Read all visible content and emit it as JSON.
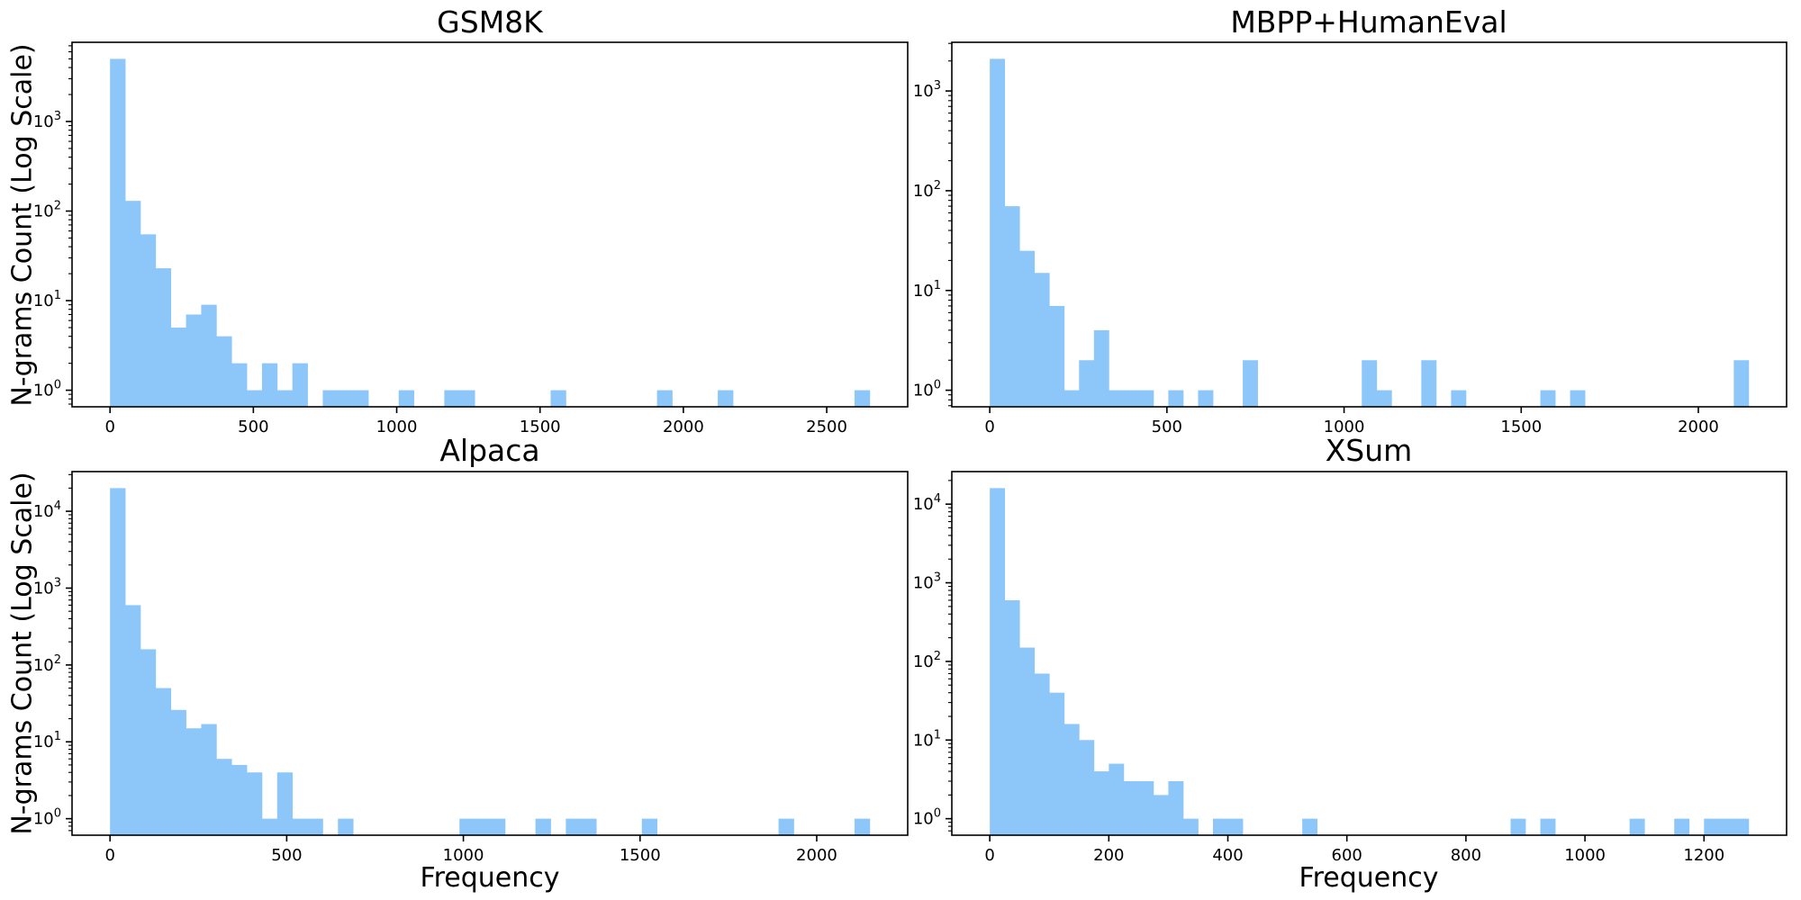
{
  "figure": {
    "background_color": "#ffffff",
    "bar_color": "#8dc7fa",
    "axis_color": "#000000",
    "shared_ylabel": "N-grams Count (Log Scale)",
    "shared_xlabel": "Frequency"
  },
  "chart_data": [
    {
      "type": "bar",
      "title": "GSM8K",
      "xlabel": "Frequency",
      "ylabel": "N-grams Count (Log Scale)",
      "yscale": "log",
      "grid": false,
      "legend": "none",
      "bin_start": 0,
      "bin_width": 53,
      "counts": [
        5000,
        130,
        55,
        23,
        5,
        7,
        9,
        4,
        2,
        1,
        2,
        1,
        2,
        0,
        1,
        1,
        1,
        0,
        0,
        1,
        0,
        0,
        1,
        1,
        0,
        0,
        0,
        0,
        0,
        1,
        0,
        0,
        0,
        0,
        0,
        0,
        1,
        0,
        0,
        0,
        1,
        0,
        0,
        0,
        0,
        0,
        0,
        0,
        0,
        1
      ],
      "xticks": [
        0,
        500,
        1000,
        1500,
        2000,
        2500
      ],
      "ytick_exponents": [
        0,
        1,
        2,
        3
      ],
      "xlim": [
        -132.5,
        2782.5
      ],
      "ylim_log10": [
        -0.185,
        3.884
      ]
    },
    {
      "type": "bar",
      "title": "MBPP+HumanEval",
      "xlabel": "Frequency",
      "ylabel": "N-grams Count (Log Scale)",
      "yscale": "log",
      "grid": false,
      "legend": "none",
      "bin_start": 0,
      "bin_width": 42,
      "counts": [
        2100,
        70,
        25,
        15,
        7,
        1,
        2,
        4,
        1,
        1,
        1,
        0,
        1,
        0,
        1,
        0,
        0,
        2,
        0,
        0,
        0,
        0,
        0,
        0,
        0,
        2,
        1,
        0,
        0,
        2,
        0,
        1,
        0,
        0,
        0,
        0,
        0,
        1,
        0,
        1,
        0,
        0,
        0,
        0,
        0,
        0,
        0,
        0,
        0,
        0,
        2
      ],
      "xticks": [
        0,
        500,
        1000,
        1500,
        2000
      ],
      "ytick_exponents": [
        0,
        1,
        2,
        3
      ],
      "xlim": [
        -107.1,
        2249.1
      ],
      "ylim_log10": [
        -0.166,
        3.488
      ]
    },
    {
      "type": "bar",
      "title": "Alpaca",
      "xlabel": "Frequency",
      "ylabel": "N-grams Count (Log Scale)",
      "yscale": "log",
      "grid": false,
      "legend": "none",
      "bin_start": 0,
      "bin_width": 43,
      "counts": [
        20000,
        600,
        160,
        50,
        26,
        15,
        17,
        6,
        5,
        4,
        1,
        4,
        1,
        1,
        0,
        1,
        0,
        0,
        0,
        0,
        0,
        0,
        0,
        1,
        1,
        1,
        0,
        0,
        1,
        0,
        1,
        1,
        0,
        0,
        0,
        1,
        0,
        0,
        0,
        0,
        0,
        0,
        0,
        0,
        1,
        0,
        0,
        0,
        0,
        1
      ],
      "xticks": [
        0,
        500,
        1000,
        1500,
        2000
      ],
      "ytick_exponents": [
        0,
        1,
        2,
        3,
        4
      ],
      "xlim": [
        -107.5,
        2257.5
      ],
      "ylim_log10": [
        -0.215,
        4.516
      ]
    },
    {
      "type": "bar",
      "title": "XSum",
      "xlabel": "Frequency",
      "ylabel": "N-grams Count (Log Scale)",
      "yscale": "log",
      "grid": false,
      "legend": "none",
      "bin_start": 0,
      "bin_width": 25,
      "counts": [
        16000,
        600,
        150,
        70,
        40,
        16,
        10,
        4,
        5,
        3,
        3,
        2,
        3,
        1,
        0,
        1,
        1,
        0,
        0,
        0,
        0,
        1,
        0,
        0,
        0,
        0,
        0,
        0,
        0,
        0,
        0,
        0,
        0,
        0,
        0,
        1,
        0,
        1,
        0,
        0,
        0,
        0,
        0,
        1,
        0,
        0,
        1,
        0,
        1,
        1,
        1
      ],
      "xticks": [
        0,
        200,
        400,
        600,
        800,
        1000,
        1200
      ],
      "ytick_exponents": [
        0,
        1,
        2,
        3,
        4
      ],
      "xlim": [
        -63.75,
        1338.75
      ],
      "ylim_log10": [
        -0.21,
        4.414
      ]
    }
  ]
}
